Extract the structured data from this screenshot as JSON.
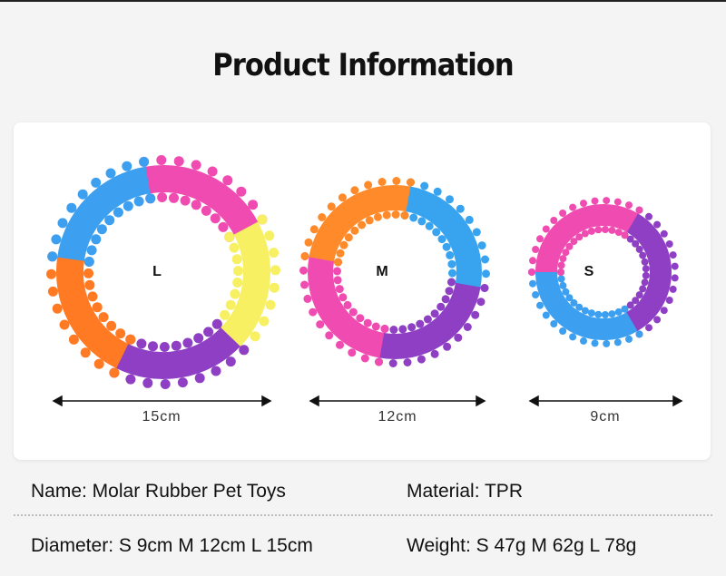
{
  "title": "Product Information",
  "rings": [
    {
      "letter": "L",
      "dimension": "15cm",
      "colors": [
        "#ef4bb0",
        "#f7f062",
        "#8e3fc4",
        "#ff7a22",
        "#3c9ff0"
      ]
    },
    {
      "letter": "M",
      "dimension": "12cm",
      "colors": [
        "#38a4ef",
        "#8e3fc4",
        "#ef4bb0",
        "#ff8a2a"
      ]
    },
    {
      "letter": "S",
      "dimension": "9cm",
      "colors": [
        "#8e3fc4",
        "#3c9ff0",
        "#ef4bb0"
      ]
    }
  ],
  "info": {
    "name": "Name: Molar Rubber Pet Toys",
    "material": "Material: TPR",
    "diameter": "Diameter: S 9cm M 12cm L 15cm",
    "weight": "Weight: S 47g M 62g L 78g"
  }
}
